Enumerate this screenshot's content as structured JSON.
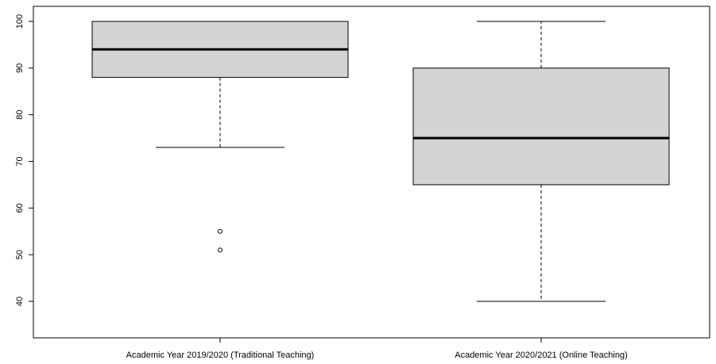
{
  "chart_data": {
    "type": "boxplot",
    "title": "",
    "xlabel": "",
    "ylabel": "",
    "ylim": [
      32,
      102
    ],
    "yticks": [
      40,
      50,
      60,
      70,
      80,
      90,
      100
    ],
    "grid": false,
    "categories": [
      "Academic Year 2019/2020 (Traditional Teaching)",
      "Academic Year 2020/2021 (Online Teaching)"
    ],
    "boxes": [
      {
        "whisker_low": 73,
        "q1": 88,
        "median": 94,
        "q3": 100,
        "whisker_high": 100,
        "outliers": [
          55,
          51
        ]
      },
      {
        "whisker_low": 40,
        "q1": 65,
        "median": 75,
        "q3": 90,
        "whisker_high": 100,
        "outliers": []
      }
    ],
    "colors": {
      "box_fill": "#d3d3d3",
      "line": "#000000"
    }
  }
}
